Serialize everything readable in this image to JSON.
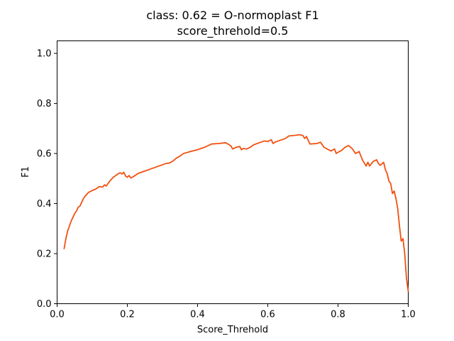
{
  "chart_data": {
    "type": "line",
    "title": "class: 0.62 = O-normoplast F1",
    "subtitle": "score_threhold=0.5",
    "xlabel": "Score_Threhold",
    "ylabel": "F1",
    "xlim": [
      0.0,
      1.0
    ],
    "ylim": [
      0.0,
      1.05
    ],
    "xticks": [
      "0.0",
      "0.2",
      "0.4",
      "0.6",
      "0.8",
      "1.0"
    ],
    "yticks": [
      "0.0",
      "0.2",
      "0.4",
      "0.6",
      "0.8",
      "1.0"
    ],
    "grid": false,
    "legend": "none",
    "line_color": "#f2500f",
    "series": [
      {
        "x": [
          0.02,
          0.025,
          0.03,
          0.035,
          0.04,
          0.045,
          0.05,
          0.055,
          0.06,
          0.065,
          0.07,
          0.075,
          0.08,
          0.085,
          0.09,
          0.1,
          0.11,
          0.12,
          0.13,
          0.135,
          0.14,
          0.145,
          0.15,
          0.16,
          0.17,
          0.175,
          0.18,
          0.185,
          0.19,
          0.195,
          0.2,
          0.205,
          0.21,
          0.22,
          0.23,
          0.25,
          0.27,
          0.29,
          0.3,
          0.31,
          0.32,
          0.33,
          0.34,
          0.35,
          0.36,
          0.38,
          0.4,
          0.41,
          0.42,
          0.44,
          0.46,
          0.48,
          0.49,
          0.495,
          0.5,
          0.51,
          0.52,
          0.525,
          0.53,
          0.54,
          0.55,
          0.56,
          0.58,
          0.59,
          0.6,
          0.61,
          0.615,
          0.62,
          0.64,
          0.65,
          0.66,
          0.68,
          0.69,
          0.7,
          0.705,
          0.71,
          0.72,
          0.74,
          0.75,
          0.76,
          0.78,
          0.79,
          0.795,
          0.8,
          0.81,
          0.82,
          0.83,
          0.84,
          0.85,
          0.86,
          0.87,
          0.88,
          0.885,
          0.89,
          0.9,
          0.91,
          0.915,
          0.92,
          0.93,
          0.935,
          0.94,
          0.945,
          0.95,
          0.955,
          0.96,
          0.965,
          0.97,
          0.975,
          0.98,
          0.985,
          0.99,
          0.995,
          1.0
        ],
        "values": [
          0.22,
          0.26,
          0.29,
          0.31,
          0.33,
          0.345,
          0.36,
          0.37,
          0.385,
          0.39,
          0.405,
          0.42,
          0.43,
          0.438,
          0.445,
          0.452,
          0.458,
          0.468,
          0.466,
          0.475,
          0.47,
          0.48,
          0.49,
          0.505,
          0.515,
          0.52,
          0.523,
          0.518,
          0.525,
          0.51,
          0.505,
          0.512,
          0.502,
          0.51,
          0.52,
          0.53,
          0.54,
          0.55,
          0.555,
          0.56,
          0.562,
          0.57,
          0.582,
          0.59,
          0.6,
          0.608,
          0.615,
          0.62,
          0.625,
          0.638,
          0.64,
          0.643,
          0.635,
          0.63,
          0.618,
          0.625,
          0.628,
          0.615,
          0.62,
          0.618,
          0.625,
          0.635,
          0.645,
          0.65,
          0.648,
          0.655,
          0.64,
          0.645,
          0.655,
          0.66,
          0.67,
          0.673,
          0.675,
          0.672,
          0.66,
          0.668,
          0.638,
          0.64,
          0.645,
          0.625,
          0.61,
          0.618,
          0.6,
          0.605,
          0.612,
          0.625,
          0.632,
          0.62,
          0.6,
          0.608,
          0.573,
          0.55,
          0.565,
          0.55,
          0.568,
          0.575,
          0.56,
          0.553,
          0.565,
          0.535,
          0.52,
          0.49,
          0.48,
          0.44,
          0.45,
          0.42,
          0.38,
          0.31,
          0.25,
          0.26,
          0.2,
          0.1,
          0.05
        ]
      }
    ]
  }
}
